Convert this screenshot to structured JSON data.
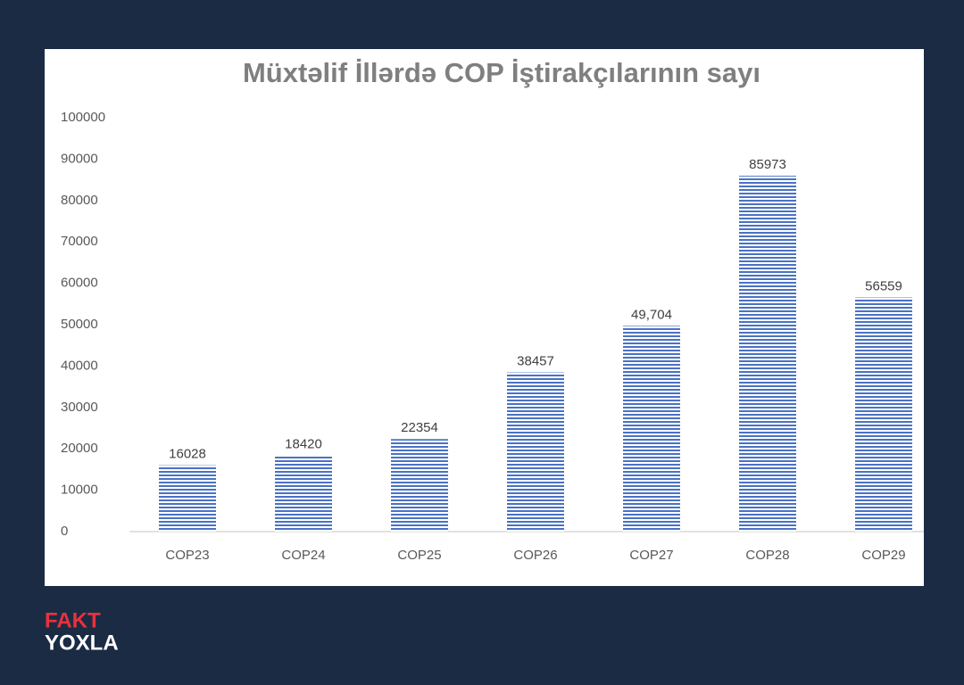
{
  "chart_data": {
    "type": "bar",
    "title": "Müxtəlif İllərdə COP İştirakçılarının sayı",
    "categories": [
      "COP23",
      "COP24",
      "COP25",
      "COP26",
      "COP27",
      "COP28",
      "COP29"
    ],
    "values": [
      16028,
      18420,
      22354,
      38457,
      49704,
      85973,
      56559
    ],
    "value_labels": [
      "16028",
      "18420",
      "22354",
      "38457",
      "49,704",
      "85973",
      "56559"
    ],
    "color": "#4a72c4",
    "ylim": [
      0,
      100000
    ],
    "yticks": [
      0,
      10000,
      20000,
      30000,
      40000,
      50000,
      60000,
      70000,
      80000,
      90000,
      100000
    ],
    "grid": false
  },
  "brand": {
    "line1": "FAKT",
    "line2": "YOXLA"
  }
}
